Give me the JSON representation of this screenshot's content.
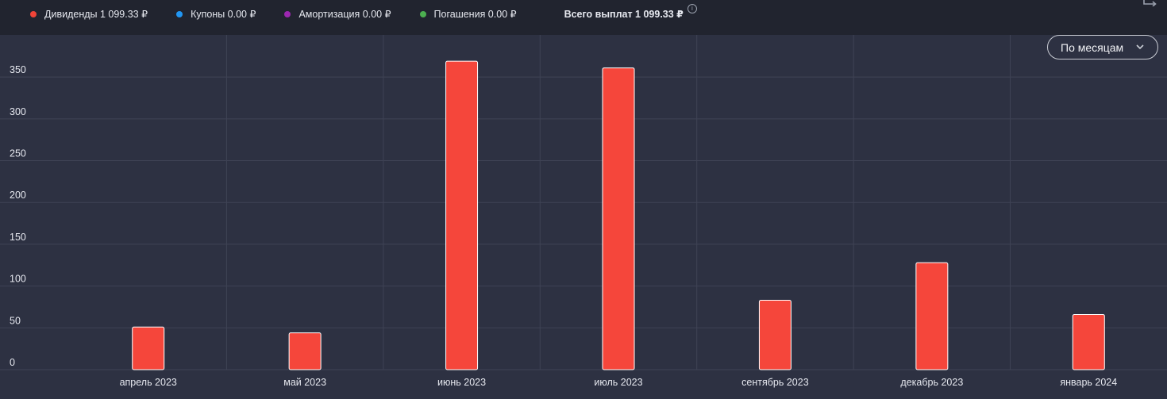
{
  "legend": {
    "items": [
      {
        "label": "Дивиденды 1 099.33 ₽",
        "color": "#f04438"
      },
      {
        "label": "Купоны 0.00 ₽",
        "color": "#2196f3"
      },
      {
        "label": "Амортизация 0.00 ₽",
        "color": "#9c27b0"
      },
      {
        "label": "Погашения 0.00 ₽",
        "color": "#4caf50"
      }
    ],
    "total": "Всего выплат 1 099.33 ₽",
    "info_icon": "info-icon",
    "export_icon": "export-icon"
  },
  "period_select": {
    "value": "По месяцам",
    "icon": "chevron-down-icon"
  },
  "chart_data": {
    "type": "bar",
    "categories": [
      "апрель 2023",
      "май 2023",
      "июнь 2023",
      "июль 2023",
      "сентябрь 2023",
      "декабрь 2023",
      "январь 2024"
    ],
    "series": [
      {
        "name": "Дивиденды",
        "color": "#f5463b",
        "values": [
          51,
          44,
          369,
          361,
          83,
          128,
          66
        ]
      }
    ],
    "yticks": [
      0,
      50,
      100,
      150,
      200,
      250,
      300,
      350
    ],
    "ylim": [
      0,
      400
    ],
    "grid": true,
    "legend_position": "top-left"
  }
}
